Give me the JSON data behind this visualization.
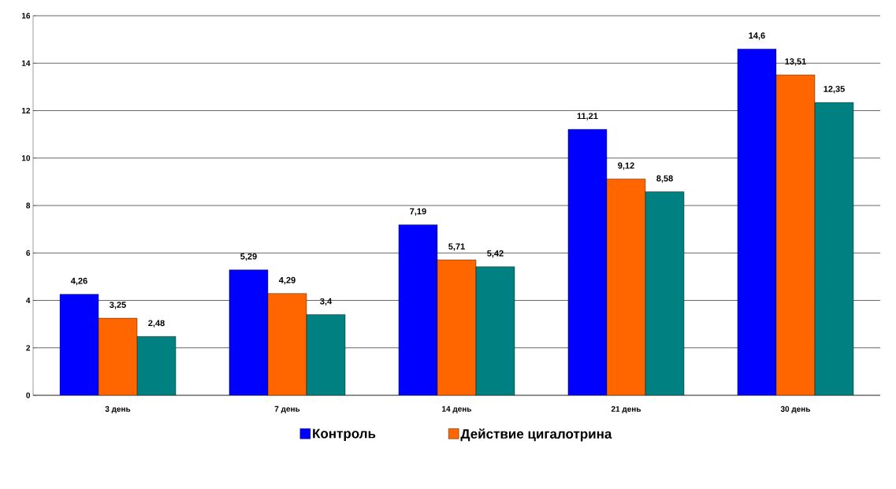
{
  "chart_data": {
    "type": "bar",
    "categories": [
      "3 день",
      "7 день",
      "14 день",
      "21 день",
      "30 день"
    ],
    "series": [
      {
        "name": "Контроль",
        "color": "#0000ff",
        "values": [
          4.26,
          5.29,
          7.19,
          11.21,
          14.6
        ],
        "value_labels": [
          "4,26",
          "5,29",
          "7,19",
          "11,21",
          "14,6"
        ]
      },
      {
        "name": "Действие цигалотрина",
        "color": "#ff6600",
        "values": [
          3.25,
          4.29,
          5.71,
          9.12,
          13.51
        ],
        "value_labels": [
          "3,25",
          "4,29",
          "5,71",
          "9,12",
          "13,51"
        ]
      },
      {
        "color": "#008080",
        "values": [
          2.48,
          3.4,
          5.42,
          8.58,
          12.35
        ],
        "value_labels": [
          "2,48",
          "3,4",
          "5,42",
          "8,58",
          "12,35"
        ]
      }
    ],
    "ylim": [
      0,
      16
    ],
    "yticks": [
      0,
      2,
      4,
      6,
      8,
      10,
      12,
      14,
      16
    ],
    "grid": "y",
    "legend": "bottom"
  }
}
